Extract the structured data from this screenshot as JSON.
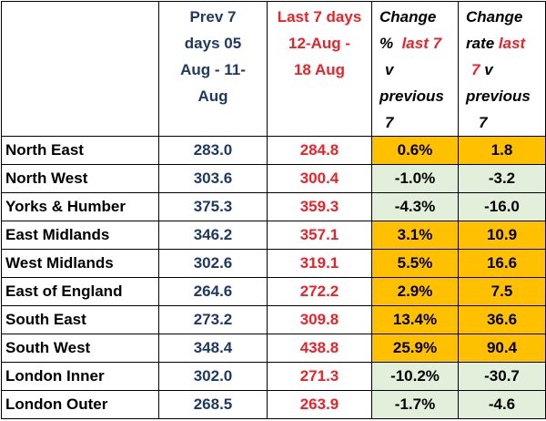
{
  "header": {
    "prev_line1": "Prev 7",
    "prev_line2": "days 05",
    "prev_line3": "Aug - 11-",
    "prev_line4": "Aug",
    "last_line1": "Last 7 days",
    "last_line2": "12-Aug -",
    "last_line3": "18 Aug",
    "chgpct_line1": "Change",
    "chgpct_line2a": "%",
    "chgpct_line2b": "last 7",
    "chgpct_line3": "v",
    "chgpct_line4": "previous",
    "chgpct_line5": "7",
    "chgrate_line1": "Change",
    "chgrate_line2a": "rate",
    "chgrate_line2b": "last",
    "chgrate_line3a": "7",
    "chgrate_line3b": "v",
    "chgrate_line4": "previous",
    "chgrate_line5": "7"
  },
  "rows": [
    {
      "region": "North East",
      "prev": "283.0",
      "last": "284.8",
      "pct": "0.6%",
      "rate": "1.8",
      "dir": "up"
    },
    {
      "region": "North West",
      "prev": "303.6",
      "last": "300.4",
      "pct": "-1.0%",
      "rate": "-3.2",
      "dir": "down"
    },
    {
      "region": "Yorks & Humber",
      "prev": "375.3",
      "last": "359.3",
      "pct": "-4.3%",
      "rate": "-16.0",
      "dir": "down"
    },
    {
      "region": "East Midlands",
      "prev": "346.2",
      "last": "357.1",
      "pct": "3.1%",
      "rate": "10.9",
      "dir": "up"
    },
    {
      "region": "West Midlands",
      "prev": "302.6",
      "last": "319.1",
      "pct": "5.5%",
      "rate": "16.6",
      "dir": "up"
    },
    {
      "region": "East of England",
      "prev": "264.6",
      "last": "272.2",
      "pct": "2.9%",
      "rate": "7.5",
      "dir": "up"
    },
    {
      "region": "South East",
      "prev": "273.2",
      "last": "309.8",
      "pct": "13.4%",
      "rate": "36.6",
      "dir": "up"
    },
    {
      "region": "South West",
      "prev": "348.4",
      "last": "438.8",
      "pct": "25.9%",
      "rate": "90.4",
      "dir": "up"
    },
    {
      "region": "London Inner",
      "prev": "302.0",
      "last": "271.3",
      "pct": "-10.2%",
      "rate": "-30.7",
      "dir": "down"
    },
    {
      "region": "London Outer",
      "prev": "268.5",
      "last": "263.9",
      "pct": "-1.7%",
      "rate": "-4.6",
      "dir": "down"
    }
  ],
  "colors": {
    "increase_fill": "#ffc000",
    "decrease_fill": "#e2efda",
    "prev_text": "#1f3864",
    "last_text": "#e8242a"
  }
}
